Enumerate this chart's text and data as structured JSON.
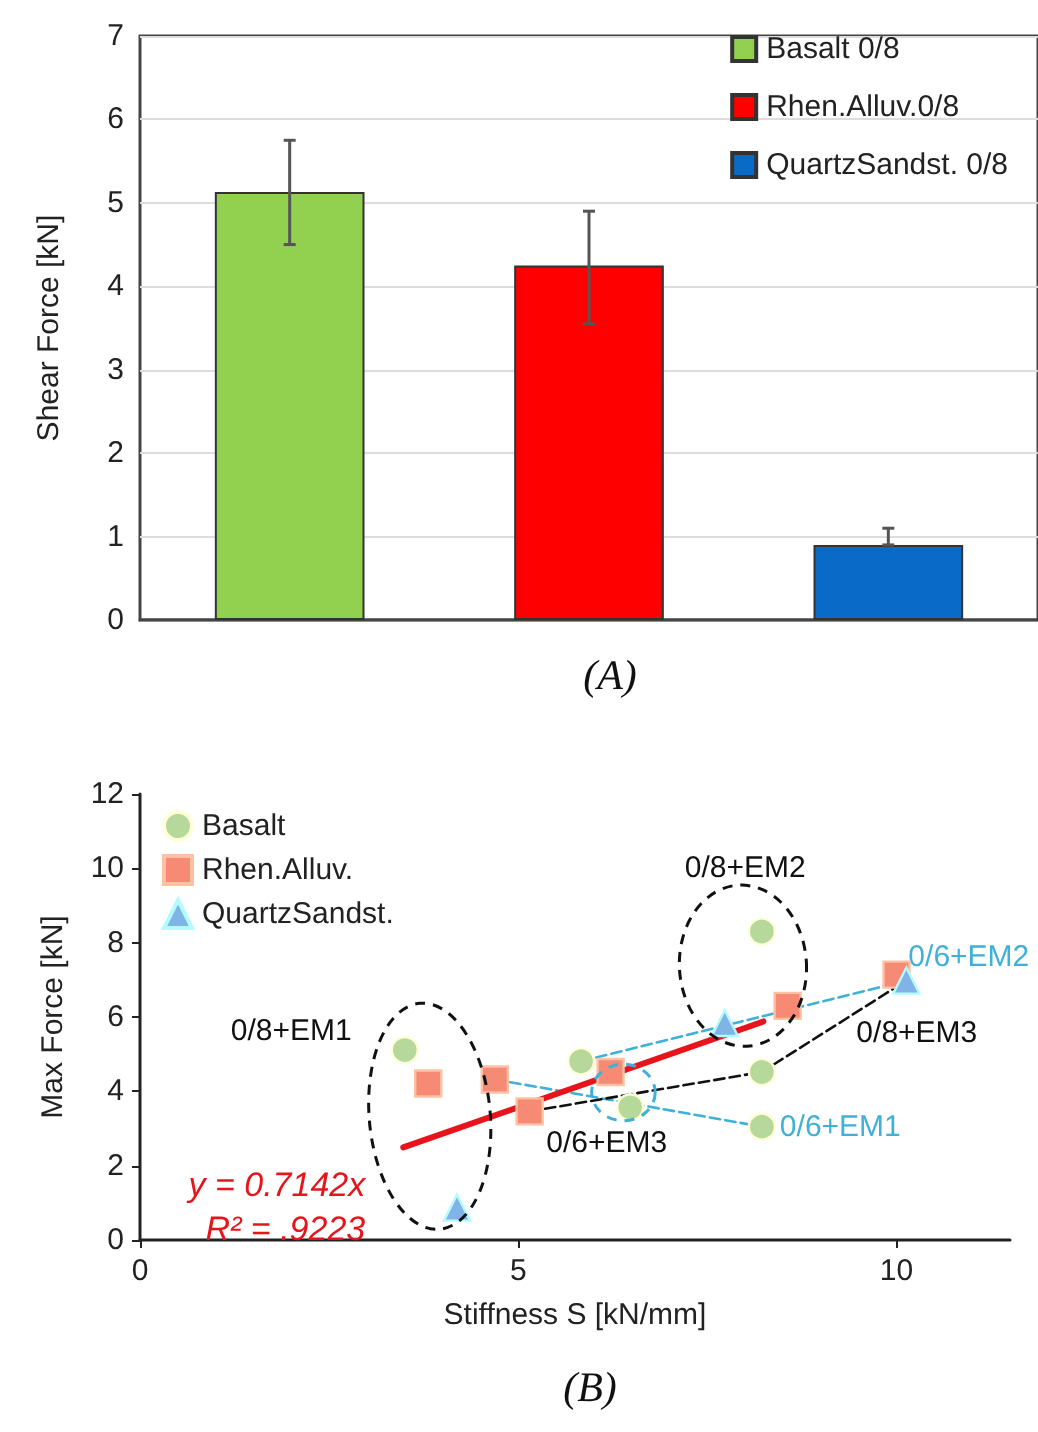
{
  "chart_data": [
    {
      "type": "bar",
      "title": "(A)",
      "ylabel": "Shear Force [kN]",
      "categories": [
        null,
        null,
        null
      ],
      "stacked": true,
      "ylim": [
        0,
        7
      ],
      "yticks": [
        0,
        1,
        2,
        3,
        4,
        5,
        6,
        7
      ],
      "grid": "y",
      "legend": "top right",
      "series": [
        {
          "name": "Basalt 0/8",
          "color": "#92d050",
          "values": [
            5.13,
            null,
            null
          ],
          "errors": [
            [
              4.5,
              5.75
            ],
            null,
            null
          ]
        },
        {
          "name": "Rhen.Alluv.0/8",
          "color": "#ff0000",
          "values": [
            null,
            4.25,
            null
          ],
          "errors": [
            null,
            [
              3.55,
              4.9
            ],
            null
          ]
        },
        {
          "name": "QuartzSandst. 0/8",
          "color": "#0a6ac8",
          "values": [
            null,
            null,
            0.9
          ],
          "errors": [
            null,
            null,
            [
              0.9,
              1.1
            ]
          ]
        }
      ]
    },
    {
      "type": "scatter",
      "title": "(B)",
      "xlabel": "Stiffness S [kN/mm]",
      "ylabel": "Max Force [kN]",
      "xlim": [
        0,
        11.5
      ],
      "xticks": [
        0,
        5,
        10
      ],
      "ylim": [
        0,
        12
      ],
      "yticks": [
        0,
        2,
        4,
        6,
        8,
        10,
        12
      ],
      "grid": false,
      "legend": "top left",
      "series": [
        {
          "name": "Basalt",
          "color": "#b6d99b",
          "marker": "circle",
          "x": [
            3.5,
            5.83,
            6.48,
            8.22,
            8.22,
            8.22
          ],
          "values": [
            5.11,
            4.81,
            3.57,
            8.3,
            4.52,
            3.05
          ]
        },
        {
          "name": "Rhen.Alluv.",
          "color": "#f78a74",
          "marker": "square",
          "x": [
            3.81,
            4.69,
            5.15,
            6.22,
            8.56,
            10.0
          ],
          "values": [
            4.21,
            4.32,
            3.46,
            4.52,
            6.3,
            7.14
          ]
        },
        {
          "name": "QuartzSandst.",
          "color": "#80b4e6",
          "marker": "triangle",
          "x": [
            4.19,
            7.73,
            10.13
          ],
          "values": [
            0.87,
            5.84,
            6.98
          ]
        },
        {
          "type": "line",
          "name": "0/6+EM1",
          "color": "#3fb0d8",
          "line_style": "dashed",
          "x": [
            4.69,
            8.22
          ],
          "values": [
            4.32,
            3.05
          ]
        },
        {
          "type": "line",
          "name": "0/6+EM2",
          "color": "#3fb0d8",
          "line_style": "dashed",
          "x": [
            5.83,
            10.13
          ],
          "values": [
            4.81,
            6.98
          ]
        },
        {
          "type": "line",
          "name": "0/8+EM3",
          "color": "#111111",
          "line_style": "dashed",
          "x": [
            5.15,
            8.22,
            10.13
          ],
          "values": [
            3.46,
            4.52,
            6.98
          ]
        },
        {
          "type": "line",
          "name": "y = 0.7142x\nR² = .9223",
          "color": "#e8141b",
          "line_style": "solid",
          "x": [
            3.48,
            8.24
          ],
          "values": [
            2.49,
            5.88
          ]
        }
      ],
      "annotations": [
        "0/8+EM1",
        "0/8+EM2",
        "0/6+EM3"
      ]
    }
  ]
}
